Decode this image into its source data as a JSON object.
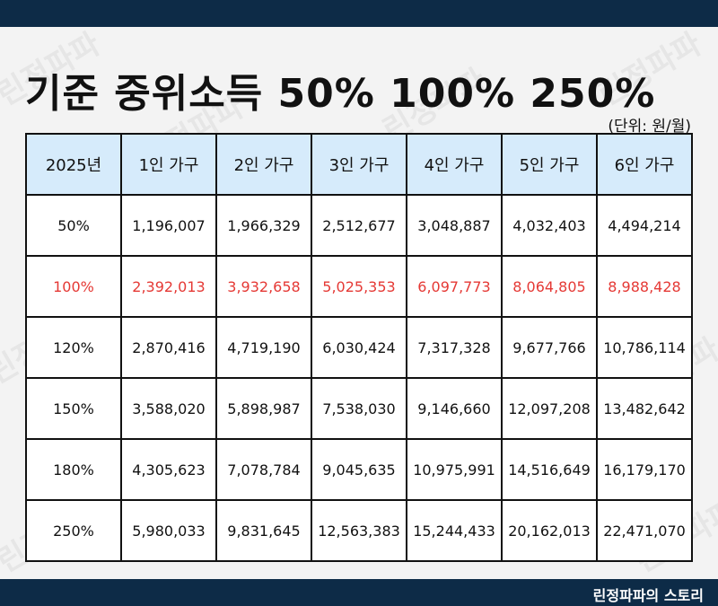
{
  "title": "기준 중위소득 50% 100% 250%",
  "unit": "(단위: 원/월)",
  "watermark": "린정파파",
  "footer": "린정파파의 스토리",
  "colors": {
    "header_bg": "#d6ebfb",
    "bar": "#0d2b47",
    "highlight": "#e53935"
  },
  "table": {
    "headers": [
      "2025년",
      "1인 가구",
      "2인 가구",
      "3인 가구",
      "4인 가구",
      "5인 가구",
      "6인 가구"
    ],
    "rows": [
      {
        "label": "50%",
        "values": [
          "1,196,007",
          "1,966,329",
          "2,512,677",
          "3,048,887",
          "4,032,403",
          "4,494,214"
        ]
      },
      {
        "label": "100%",
        "values": [
          "2,392,013",
          "3,932,658",
          "5,025,353",
          "6,097,773",
          "8,064,805",
          "8,988,428"
        ]
      },
      {
        "label": "120%",
        "values": [
          "2,870,416",
          "4,719,190",
          "6,030,424",
          "7,317,328",
          "9,677,766",
          "10,786,114"
        ]
      },
      {
        "label": "150%",
        "values": [
          "3,588,020",
          "5,898,987",
          "7,538,030",
          "9,146,660",
          "12,097,208",
          "13,482,642"
        ]
      },
      {
        "label": "180%",
        "values": [
          "4,305,623",
          "7,078,784",
          "9,045,635",
          "10,975,991",
          "14,516,649",
          "16,179,170"
        ]
      },
      {
        "label": "250%",
        "values": [
          "5,980,033",
          "9,831,645",
          "12,563,383",
          "15,244,433",
          "20,162,013",
          "22,471,070"
        ]
      }
    ]
  }
}
